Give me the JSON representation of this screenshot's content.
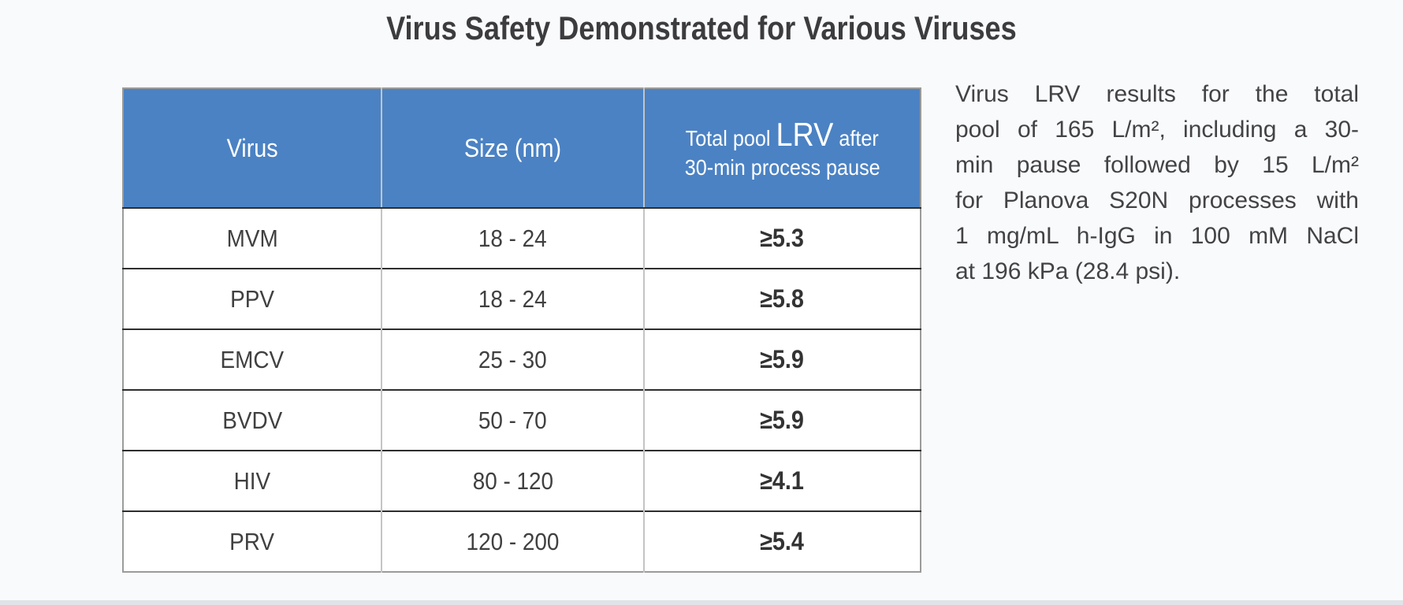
{
  "title": "Virus Safety Demonstrated for Various Viruses",
  "table": {
    "columns": [
      "Virus",
      "Size (nm)"
    ],
    "header3": {
      "pre": "Total pool ",
      "big": "LRV",
      "post": " after",
      "line2": "30-min process pause"
    },
    "rows": [
      {
        "virus": "MVM",
        "size": "18 - 24",
        "lrv": "≥5.3"
      },
      {
        "virus": "PPV",
        "size": "18 - 24",
        "lrv": "≥5.8"
      },
      {
        "virus": "EMCV",
        "size": "25 - 30",
        "lrv": "≥5.9"
      },
      {
        "virus": "BVDV",
        "size": "50 - 70",
        "lrv": "≥5.9"
      },
      {
        "virus": "HIV",
        "size": "80 - 120",
        "lrv": "≥4.1"
      },
      {
        "virus": "PRV",
        "size": "120 - 200",
        "lrv": "≥5.4"
      }
    ]
  },
  "note": {
    "lines": [
      "Virus LRV results for the total",
      "pool of 165 L/m², including a 30-",
      "min pause followed by 15 L/m²",
      "for Planova S20N processes with",
      "1 mg/mL h-IgG in 100 mM NaCl",
      "at 196 kPa (28.4 psi)."
    ]
  },
  "colors": {
    "header_bg": "#4b82c3",
    "header_text": "#ffffff",
    "body_text": "#404040",
    "border_dark": "#2e2e2e",
    "border_light": "#c4c4c4",
    "border_outer": "#9b9b9b",
    "page_bg": "#f9fafc",
    "bottom_strip": "#e0e3e7"
  }
}
